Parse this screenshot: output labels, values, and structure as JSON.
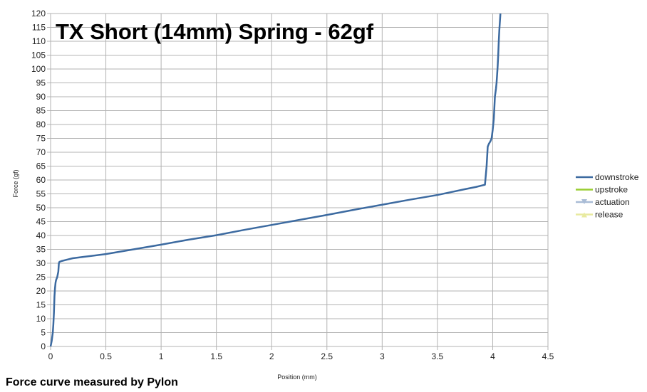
{
  "chart_data": {
    "type": "line",
    "title": "TX Short (14mm) Spring - 62gf",
    "xlabel": "Position (mm)",
    "ylabel": "Force (gf)",
    "xlim": [
      0,
      4.5
    ],
    "ylim": [
      0,
      120
    ],
    "xticks": [
      "0",
      "0.5",
      "1",
      "1.5",
      "2",
      "2.5",
      "3",
      "3.5",
      "4",
      "4.5"
    ],
    "yticks": [
      "0",
      "5",
      "10",
      "15",
      "20",
      "25",
      "30",
      "35",
      "40",
      "45",
      "50",
      "55",
      "60",
      "65",
      "70",
      "75",
      "80",
      "85",
      "90",
      "95",
      "100",
      "105",
      "110",
      "115",
      "120"
    ],
    "grid": true,
    "legend_position": "right",
    "series": [
      {
        "name": "downstroke",
        "color": "#3c6aa0",
        "x": [
          0.0,
          0.01,
          0.02,
          0.025,
          0.03,
          0.035,
          0.04,
          0.045,
          0.05,
          0.06,
          0.07,
          0.075,
          0.08,
          0.1,
          0.15,
          0.2,
          0.3,
          0.5,
          0.75,
          1.0,
          1.25,
          1.5,
          1.75,
          2.0,
          2.25,
          2.5,
          2.75,
          3.0,
          3.25,
          3.5,
          3.75,
          3.85,
          3.9,
          3.93,
          3.945,
          3.955,
          3.965,
          3.98,
          3.99,
          4.0,
          4.01,
          4.02,
          4.03,
          4.035,
          4.04,
          4.045,
          4.05,
          4.055,
          4.06,
          4.065,
          4.07
        ],
        "values": [
          0,
          2,
          5,
          8,
          12,
          18,
          21,
          23,
          24,
          25,
          27,
          30,
          30.5,
          30.8,
          31.3,
          31.8,
          32.3,
          33.3,
          35.0,
          36.7,
          38.5,
          40.1,
          42.0,
          43.8,
          45.6,
          47.4,
          49.3,
          51.1,
          52.9,
          54.6,
          56.7,
          57.5,
          58.0,
          58.3,
          65,
          72,
          73,
          74,
          75,
          78,
          82,
          90,
          93,
          95,
          98,
          101,
          105,
          110,
          114,
          117,
          120
        ]
      },
      {
        "name": "upstroke",
        "color": "#9acd32",
        "x": [],
        "values": []
      },
      {
        "name": "actuation",
        "color": "#a9bcd6",
        "x": [],
        "values": []
      },
      {
        "name": "release",
        "color": "#e8eaa0",
        "x": [],
        "values": []
      }
    ]
  },
  "footer": "Force curve measured by Pylon"
}
